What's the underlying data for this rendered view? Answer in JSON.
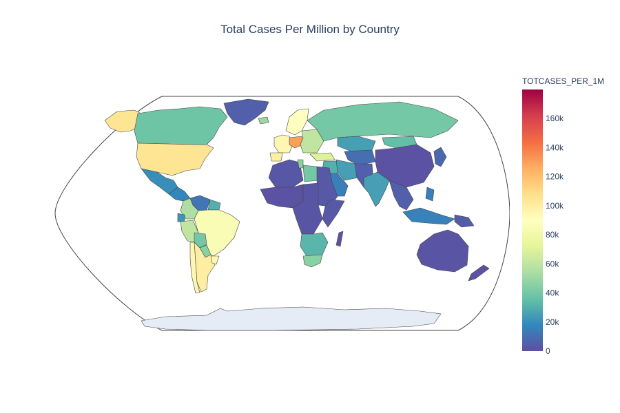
{
  "title": "Total Cases Per Million by Country",
  "colorbar": {
    "title": "TOTCASES_PER_1M",
    "min": 0,
    "max": 180000,
    "ticks": [
      {
        "value": 0,
        "label": "0"
      },
      {
        "value": 20000,
        "label": "20k"
      },
      {
        "value": 40000,
        "label": "40k"
      },
      {
        "value": 60000,
        "label": "60k"
      },
      {
        "value": 80000,
        "label": "80k"
      },
      {
        "value": 100000,
        "label": "100k"
      },
      {
        "value": 120000,
        "label": "120k"
      },
      {
        "value": 140000,
        "label": "140k"
      },
      {
        "value": 160000,
        "label": "160k"
      }
    ],
    "colorscale": [
      "#5e4fa2",
      "#3288bd",
      "#66c2a5",
      "#abdda4",
      "#e6f598",
      "#ffffbf",
      "#fee08b",
      "#fdae61",
      "#f46d43",
      "#d53e4f",
      "#9e0142"
    ],
    "colorscale_name": "Spectral (reversed)"
  },
  "map": {
    "projection": "natural earth",
    "land_color": "#e5ecf6",
    "border_color": "#444444",
    "values": {
      "Canada": 38000,
      "United States": 105000,
      "Alaska": 105000,
      "Greenland": 5000,
      "Mexico": 20000,
      "Central America": 18000,
      "Colombia": 55000,
      "Venezuela": 12000,
      "Guianas": 30000,
      "Ecuador": 22000,
      "Peru": 60000,
      "Brazil": 85000,
      "Bolivia": 40000,
      "Paraguay": 45000,
      "Uruguay": 95000,
      "Argentina": 100000,
      "Chile": 95000,
      "Iceland": 50000,
      "Scandinavia": 90000,
      "Western Europe": 95000,
      "Iberia": 100000,
      "Central Europe": 130000,
      "Eastern Europe": 60000,
      "Russia": 40000,
      "Kazakhstan": 25000,
      "Central Asia": 10000,
      "Turkey": 70000,
      "Middle East": 30000,
      "Arabia": 15000,
      "Iran": 25000,
      "Afghanistan/Pakistan": 5000,
      "India": 25000,
      "China": 1000,
      "Mongolia": 35000,
      "Korea/Japan": 8000,
      "Southeast Asia": 5000,
      "Indonesia": 16000,
      "Philippines": 15000,
      "Papua New Guinea": 4000,
      "Australia": 1500,
      "New Zealand": 1000,
      "North Africa": 2500,
      "Libya": 40000,
      "Tunisia": 45000,
      "West Africa": 1000,
      "Central Africa": 2000,
      "East Africa": 3000,
      "Southern Africa": 32000,
      "South Africa": 45000,
      "Madagascar": 2000,
      "Antarctica": null
    }
  }
}
